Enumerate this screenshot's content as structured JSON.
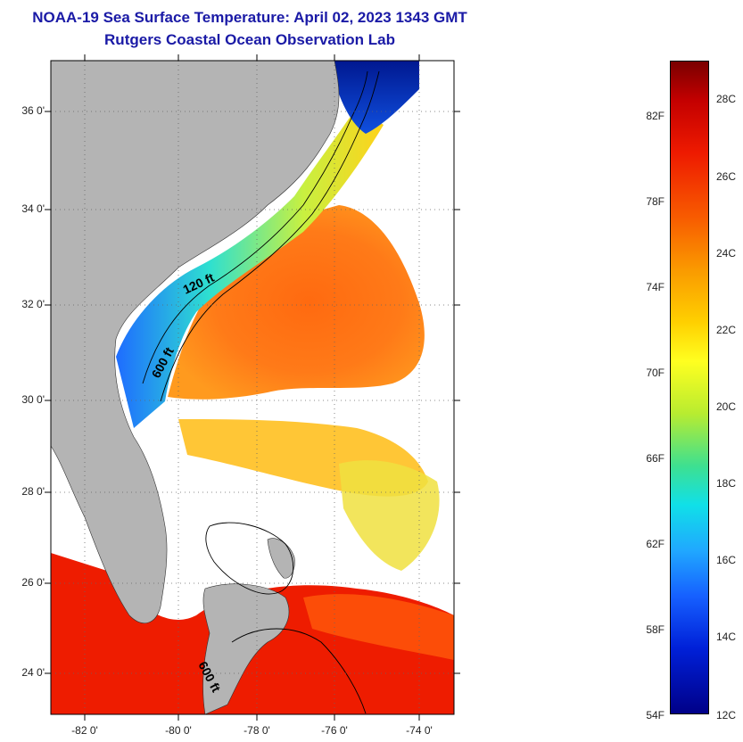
{
  "header": {
    "title": "NOAA-19 Sea Surface Temperature:  April 02, 2023 1343 GMT",
    "subtitle": "Rutgers Coastal Ocean Observation Lab"
  },
  "axes": {
    "lat_labels": [
      "36 0'",
      "34 0'",
      "32 0'",
      "30 0'",
      "28 0'",
      "26 0'",
      "24 0'"
    ],
    "lon_labels": [
      "-82 0'",
      "-80 0'",
      "-78 0'",
      "-76 0'",
      "-74 0'"
    ]
  },
  "map": {
    "contour_labels": [
      "120 ft",
      "600 ft",
      "600 ft"
    ],
    "colors": {
      "land": "#b4b4b4",
      "cloud": "#ffffff"
    }
  },
  "colorbar": {
    "fahrenheit": [
      "82F",
      "78F",
      "74F",
      "70F",
      "66F",
      "62F",
      "58F",
      "54F"
    ],
    "celsius": [
      "28C",
      "26C",
      "24C",
      "22C",
      "20C",
      "18C",
      "16C",
      "14C",
      "12C"
    ]
  }
}
